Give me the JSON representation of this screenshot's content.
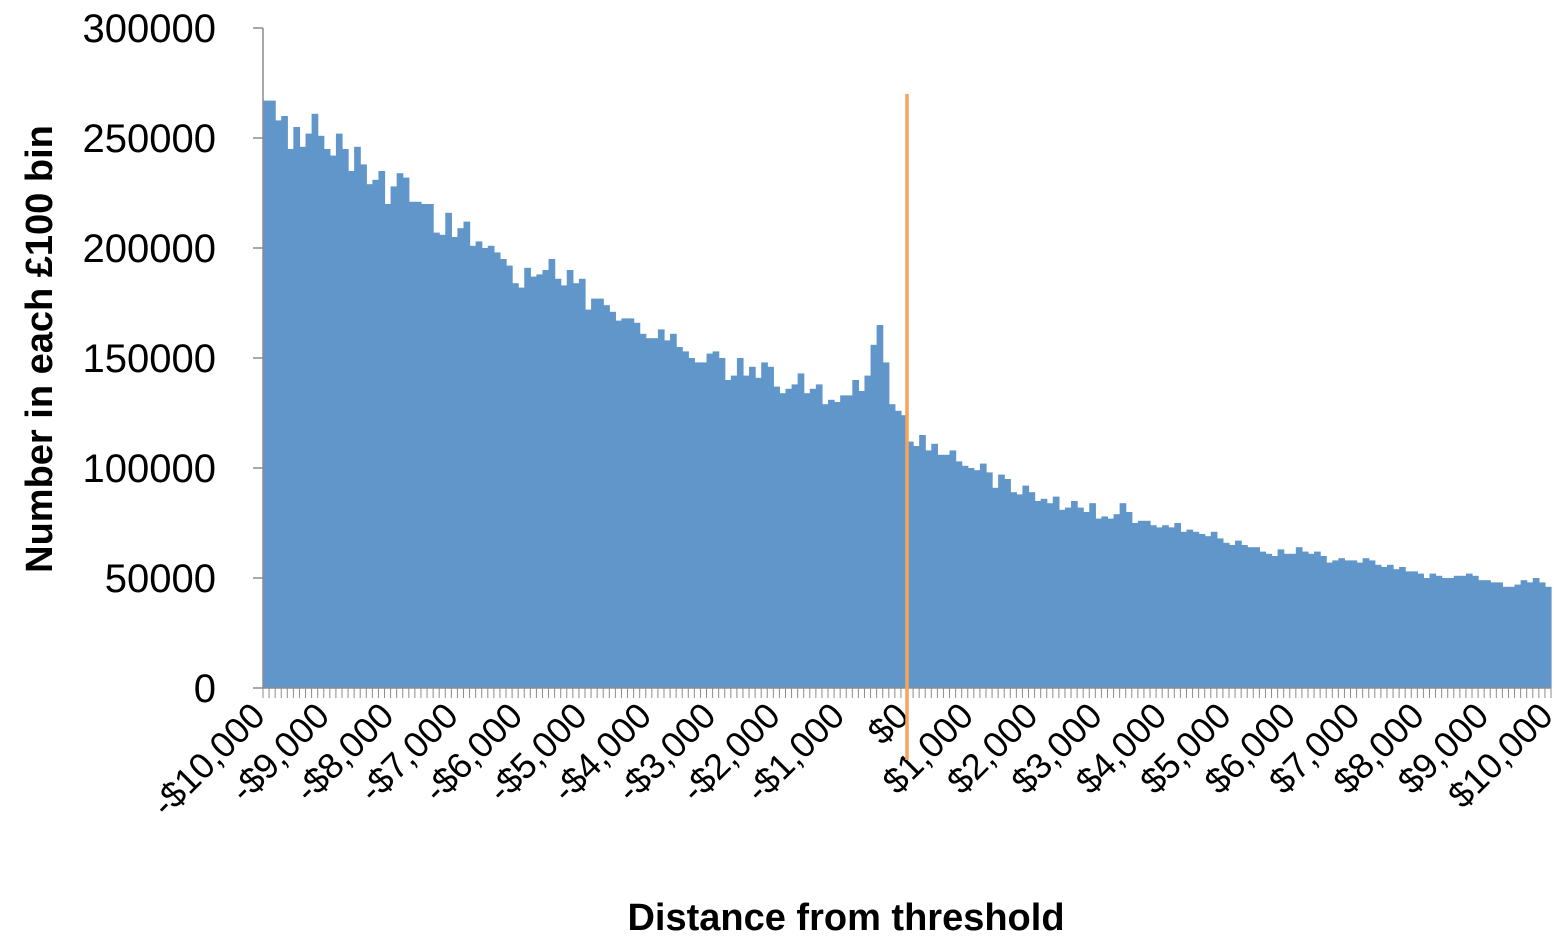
{
  "chart_data": {
    "type": "bar",
    "title": "",
    "xlabel": "Distance from threshold",
    "ylabel": "Number in each £100 bin",
    "ylim": [
      0,
      300000
    ],
    "xlim": [
      -10000,
      10000
    ],
    "bin_width": 100,
    "y_ticks": [
      0,
      50000,
      100000,
      150000,
      200000,
      250000,
      300000
    ],
    "x_tick_labels": [
      "-$10,000",
      "-$9,000",
      "-$8,000",
      "-$7,000",
      "-$6,000",
      "-$5,000",
      "-$4,000",
      "-$3,000",
      "-$2,000",
      "-$1,000",
      "$0",
      "$1,000",
      "$2,000",
      "$3,000",
      "$4,000",
      "$5,000",
      "$6,000",
      "$7,000",
      "$8,000",
      "$9,000",
      "$10,000"
    ],
    "x_tick_values": [
      -10000,
      -9000,
      -8000,
      -7000,
      -6000,
      -5000,
      -4000,
      -3000,
      -2000,
      -1000,
      0,
      1000,
      2000,
      3000,
      4000,
      5000,
      6000,
      7000,
      8000,
      9000,
      10000
    ],
    "grid": false,
    "legend": "none",
    "threshold_line": {
      "x": 0,
      "y_top": 270000
    },
    "colors": {
      "bar": "#6096c9",
      "threshold": "#f5a45c",
      "axis": "#8c8c8c"
    },
    "series": [
      {
        "values": [
          267000,
          267000,
          258000,
          260000,
          245000,
          255000,
          246000,
          252000,
          261000,
          251000,
          245000,
          242000,
          252000,
          245000,
          235000,
          246000,
          238000,
          229000,
          231000,
          235000,
          220000,
          228000,
          234000,
          232000,
          221000,
          221000,
          220000,
          220000,
          207000,
          206000,
          216000,
          205000,
          209000,
          212000,
          201000,
          203000,
          200000,
          201000,
          198000,
          195000,
          192000,
          184000,
          182000,
          191000,
          187000,
          188000,
          190000,
          195000,
          186000,
          183000,
          190000,
          184000,
          186000,
          172000,
          177000,
          177000,
          174000,
          171000,
          167000,
          168000,
          168000,
          166000,
          161000,
          159000,
          159000,
          163000,
          158000,
          161000,
          155000,
          153000,
          150000,
          148000,
          148000,
          152000,
          153000,
          150000,
          140000,
          142000,
          150000,
          142000,
          146000,
          141000,
          148000,
          146000,
          137000,
          134000,
          136000,
          138000,
          143000,
          134000,
          136000,
          138000,
          129000,
          131000,
          130000,
          133000,
          133000,
          140000,
          135000,
          142000,
          156000,
          165000,
          148000,
          129000,
          126000,
          124000,
          112000,
          110000,
          115000,
          108000,
          111000,
          106000,
          106000,
          108000,
          103000,
          101000,
          100000,
          99000,
          102000,
          98000,
          91000,
          97000,
          95000,
          89000,
          88000,
          92000,
          89000,
          85000,
          86000,
          84000,
          87000,
          81000,
          82000,
          85000,
          82000,
          80000,
          84000,
          77000,
          78000,
          77000,
          79000,
          84000,
          80000,
          75000,
          76000,
          76000,
          74000,
          73000,
          74000,
          73000,
          75000,
          71000,
          72000,
          71000,
          70000,
          69000,
          71000,
          68000,
          66000,
          65000,
          67000,
          65000,
          64000,
          64000,
          62000,
          61000,
          60000,
          63000,
          61000,
          61000,
          64000,
          62000,
          61000,
          62000,
          60000,
          57000,
          58000,
          59000,
          58000,
          58000,
          57000,
          59000,
          58000,
          56000,
          55000,
          56000,
          54000,
          55000,
          53000,
          53000,
          52000,
          50000,
          52000,
          51000,
          50000,
          50000,
          51000,
          51000,
          52000,
          51000,
          49000,
          49000,
          48000,
          48000,
          46000,
          46000,
          47000,
          49000,
          48000,
          50000,
          48000,
          46000
        ]
      }
    ]
  }
}
